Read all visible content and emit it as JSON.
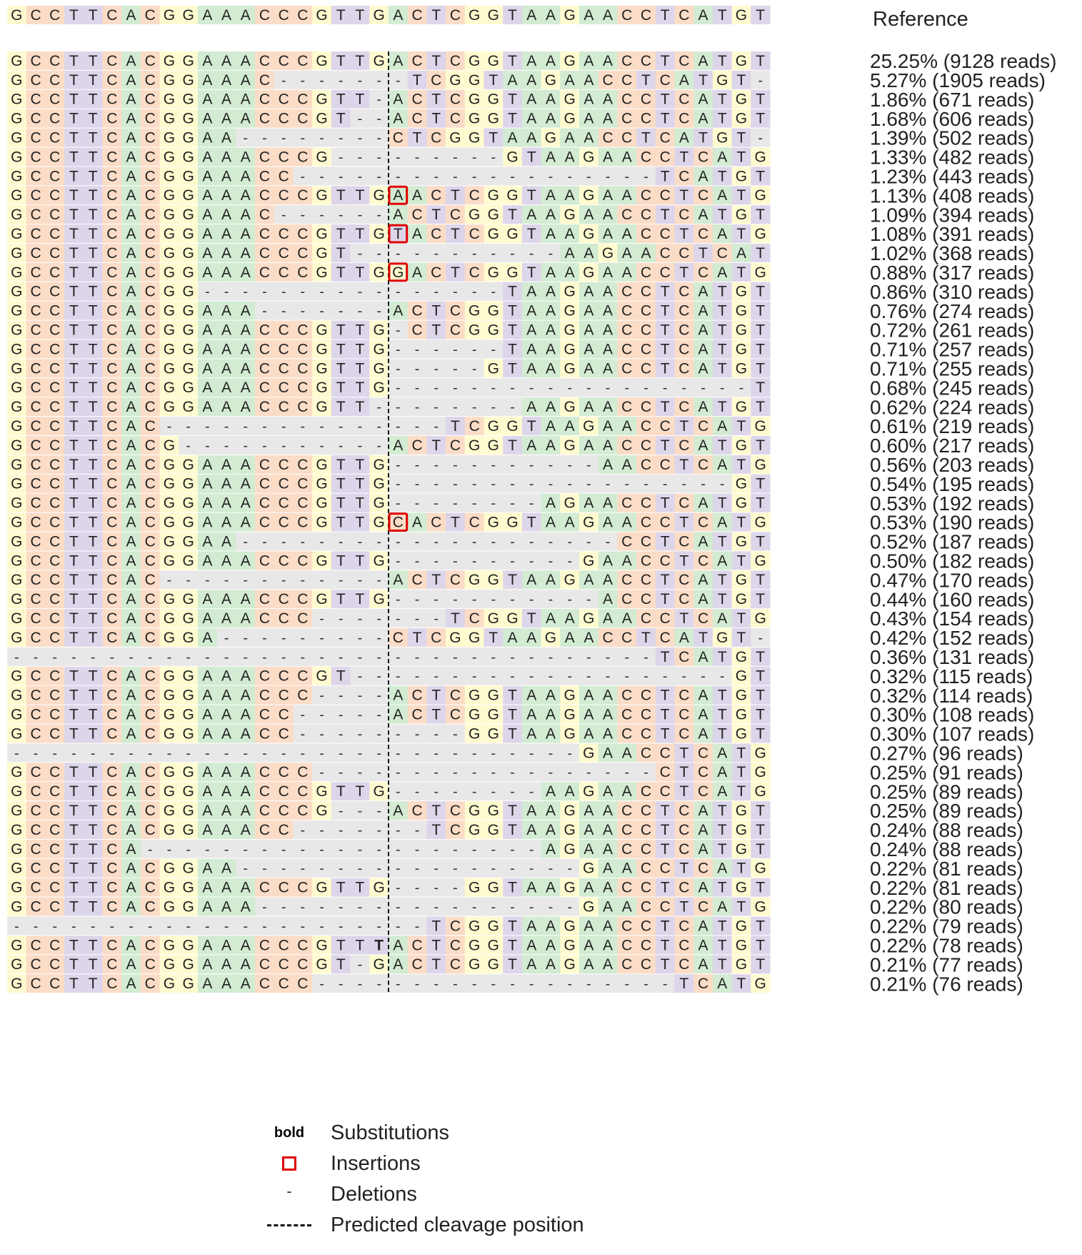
{
  "reference": {
    "label": "Reference",
    "sequence": "GCCTTCACGGAAACCCGTTGACTCGGTAAGAACCTCATGT"
  },
  "cleavage_after_position": 20,
  "colors": {
    "A": "#d2ebd2",
    "C": "#fbdcc6",
    "G": "#fffbd0",
    "T": "#ddd5ea",
    "gap": "#e8e8e8",
    "insertion_box": "#e00000",
    "cleavage_line": "#111111"
  },
  "alleles": [
    {
      "seq": "GCCTTCACGGAAACCCGTTGACTCGGTAAGAACCTCATGT",
      "label": "25.25% (9128 reads)"
    },
    {
      "seq": "GCCTTCACGGAAAC-------TCGGTAAGAACCTCATGT",
      "label": "5.27% (1905 reads)"
    },
    {
      "seq": "GCCTTCACGGAAACCCGTT-ACTCGGTAAGAACCTCATGT",
      "label": "1.86% (671 reads)"
    },
    {
      "seq": "GCCTTCACGGAAACCCGT--ACTCGGTAAGAACCTCATGT",
      "label": "1.68% (606 reads)"
    },
    {
      "seq": "GCCTTCACGGAA--------CTCGGTAAGAACCTCATGT",
      "label": "1.39% (502 reads)"
    },
    {
      "seq": "GCCTTCACGGAAACCCG---------GTAAGAACCTCATGT",
      "label": "1.33% (482 reads)"
    },
    {
      "seq": "GCCTTCACGGAAACC-------------------TCATGT",
      "label": "1.23% (443 reads)"
    },
    {
      "seq": "GCCTTCACGGAAACCCGTTGAACTCGGTAAGAACCTCATG",
      "label": "1.13% (408 reads)",
      "insertion": 20
    },
    {
      "seq": "GCCTTCACGGAAAC------ACTCGGTAAGAACCTCATGT",
      "label": "1.09% (394 reads)"
    },
    {
      "seq": "GCCTTCACGGAAACCCGTTGTACTCGGTAAGAACCTCATG",
      "label": "1.08% (391 reads)",
      "insertion": 20
    },
    {
      "seq": "GCCTTCACGGAAACCCGT-----------AAGAACCTCATGT",
      "label": "1.02% (368 reads)"
    },
    {
      "seq": "GCCTTCACGGAAACCCGTTGGACTCGGTAAGAACCTCATG",
      "label": "0.88% (317 reads)",
      "insertion": 20
    },
    {
      "seq": "GCCTTCACGG----------------TAAGAACCTCATGT",
      "label": "0.86% (310 reads)"
    },
    {
      "seq": "GCCTTCACGGAAA-------ACTCGGTAAGAACCTCATGT",
      "label": "0.76% (274 reads)"
    },
    {
      "seq": "GCCTTCACGGAAACCCGTTG-CTCGGTAAGAACCTCATGT",
      "label": "0.72% (261 reads)"
    },
    {
      "seq": "GCCTTCACGGAAACCCGTTG------TAAGAACCTCATGT",
      "label": "0.71% (257 reads)"
    },
    {
      "seq": "GCCTTCACGGAAACCCGTTG-----GTAAGAACCTCATGT",
      "label": "0.71% (255 reads)"
    },
    {
      "seq": "GCCTTCACGGAAACCCGTTG-------------------T",
      "label": "0.68% (245 reads)"
    },
    {
      "seq": "GCCTTCACGGAAACCCGTT--------AAGAACCTCATGT",
      "label": "0.62% (224 reads)"
    },
    {
      "seq": "GCCTTCAC---------------TCGGTAAGAACCTCATGT",
      "label": "0.61% (219 reads)"
    },
    {
      "seq": "GCCTTCACG-----------ACTCGGTAAGAACCTCATGT",
      "label": "0.60% (217 reads)"
    },
    {
      "seq": "GCCTTCACGGAAACCCGTTG-----------AACCTCATGT",
      "label": "0.56% (203 reads)"
    },
    {
      "seq": "GCCTTCACGGAAACCCGTTG------------------GT",
      "label": "0.54% (195 reads)"
    },
    {
      "seq": "GCCTTCACGGAAACCCGTTG--------AGAACCTCATGT",
      "label": "0.53% (192 reads)"
    },
    {
      "seq": "GCCTTCACGGAAACCCGTTGCACTCGGTAAGAACCTCATG",
      "label": "0.53% (190 reads)",
      "insertion": 20
    },
    {
      "seq": "GCCTTCACGGAA--------------------CCTCATGT",
      "label": "0.52% (187 reads)"
    },
    {
      "seq": "GCCTTCACGGAAACCCGTTG----------GAACCTCATGT",
      "label": "0.50% (182 reads)"
    },
    {
      "seq": "GCCTTCAC------------ACTCGGTAAGAACCTCATGT",
      "label": "0.47% (170 reads)"
    },
    {
      "seq": "GCCTTCACGGAAACCCGTTG-----------ACCTCATGT",
      "label": "0.44% (160 reads)"
    },
    {
      "seq": "GCCTTCACGGAAACCC-------TCGGTAAGAACCTCATGT",
      "label": "0.43% (154 reads)"
    },
    {
      "seq": "GCCTTCACGGA---------CTCGGTAAGAACCTCATGT",
      "label": "0.42% (152 reads)"
    },
    {
      "seq": "----------------------------------TCATGT",
      "label": "0.36% (131 reads)"
    },
    {
      "seq": "GCCTTCACGGAAACCCGT--------------------GT",
      "label": "0.32% (115 reads)"
    },
    {
      "seq": "GCCTTCACGGAAACCC----ACTCGGTAAGAACCTCATGT",
      "label": "0.32% (114 reads)"
    },
    {
      "seq": "GCCTTCACGGAAACC-----ACTCGGTAAGAACCTCATGT",
      "label": "0.30% (108 reads)"
    },
    {
      "seq": "GCCTTCACGGAAACC---------GGTAAGAACCTCATGT",
      "label": "0.30% (107 reads)"
    },
    {
      "seq": "------------------------------GAACCTCATGT",
      "label": "0.27% (96 reads)"
    },
    {
      "seq": "GCCTTCACGGAAACCC------------------CTCATGT",
      "label": "0.25% (91 reads)"
    },
    {
      "seq": "GCCTTCACGGAAACCCGTTG--------AAGAACCTCATGT",
      "label": "0.25% (89 reads)"
    },
    {
      "seq": "GCCTTCACGGAAACCCG---ACTCGGTAAGAACCTCATGT",
      "label": "0.25% (89 reads)"
    },
    {
      "seq": "GCCTTCACGGAAACC-------TCGGTAAGAACCTCATGT",
      "label": "0.24% (88 reads)"
    },
    {
      "seq": "GCCTTCA---------------------AGAACCTCATGT",
      "label": "0.24% (88 reads)"
    },
    {
      "seq": "GCCTTCACGGAA------------------GAACCTCATGT",
      "label": "0.22% (81 reads)"
    },
    {
      "seq": "GCCTTCACGGAAACCCGTTG----GGTAAGAACCTCATGT",
      "label": "0.22% (81 reads)"
    },
    {
      "seq": "GCCTTCACGGAAA-----------------GAACCTCATGT",
      "label": "0.22% (80 reads)"
    },
    {
      "seq": "----------------------TCGGTAAGAACCTCATGT",
      "label": "0.22% (79 reads)"
    },
    {
      "seq": "GCCTTCACGGAAACCCGTTTACTCGGTAAGAACCTCATGT",
      "label": "0.22% (78 reads)",
      "substitution": 19
    },
    {
      "seq": "GCCTTCACGGAAACCCGT-GACTCGGTAAGAACCTCATGT",
      "label": "0.21% (77 reads)"
    },
    {
      "seq": "GCCTTCACGGAAACCC-------------------TCATGT",
      "label": "0.21% (76 reads)"
    }
  ],
  "legend": [
    {
      "symbol_text": "bold",
      "label": "Substitutions"
    },
    {
      "symbol_text": "",
      "label": "Insertions"
    },
    {
      "symbol_text": "-",
      "label": "Deletions"
    },
    {
      "symbol_text": "",
      "label": "Predicted cleavage position"
    }
  ]
}
